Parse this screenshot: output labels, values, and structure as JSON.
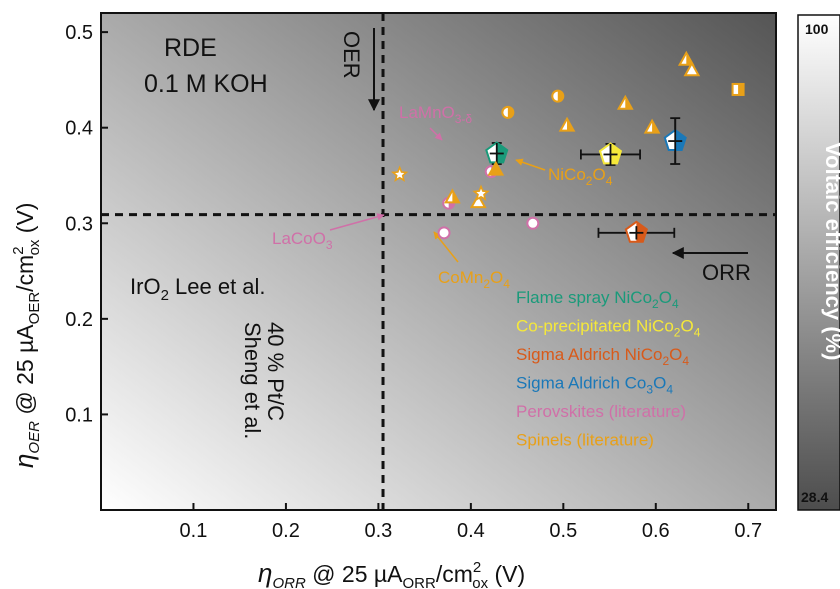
{
  "chart_data": {
    "type": "scatter",
    "xlim": [
      0,
      0.73
    ],
    "ylim": [
      0,
      0.52
    ],
    "x_ticks": [
      {
        "v": 0.1,
        "label": "0.1"
      },
      {
        "v": 0.2,
        "label": "0.2"
      },
      {
        "v": 0.3,
        "label": "0.3"
      },
      {
        "v": 0.4,
        "label": "0.4"
      },
      {
        "v": 0.5,
        "label": "0.5"
      },
      {
        "v": 0.6,
        "label": "0.6"
      },
      {
        "v": 0.7,
        "label": "0.7"
      }
    ],
    "y_ticks": [
      {
        "v": 0.1,
        "label": "0.1"
      },
      {
        "v": 0.2,
        "label": "0.2"
      },
      {
        "v": 0.3,
        "label": "0.3"
      },
      {
        "v": 0.4,
        "label": "0.4"
      },
      {
        "v": 0.5,
        "label": "0.5"
      }
    ],
    "xlabel": {
      "eta": "η",
      "sub1": "ORR",
      "mid": " @ 25 µA",
      "sub2": "ORR",
      "mid2": "/cm",
      "sup": "2",
      "sub3": "ox",
      "end": " (V)"
    },
    "ylabel": {
      "eta": "η",
      "sub1": "OER",
      "mid": " @ 25 µA",
      "sub2": "OER",
      "mid2": "/cm",
      "sup": "2",
      "sub3": "ox",
      "end": " (V)"
    },
    "reference_lines": {
      "horizontal": {
        "y": 0.309,
        "label_main": "IrO",
        "label_sub": "2",
        "label_rest": " Lee et al."
      },
      "vertical": {
        "x": 0.305,
        "label_line1": "40 % Pt/C",
        "label_line2": "Sheng et al."
      }
    },
    "annotations": {
      "conditions_line1": "RDE",
      "conditions_line2": "0.1 M KOH",
      "oer_arrow": "OER",
      "orr_arrow": "ORR",
      "lamno3": {
        "text": "LaMnO",
        "sub": "3-δ"
      },
      "lacoo3": {
        "text": "LaCoO",
        "sub": "3"
      },
      "nico2o4": {
        "parts": [
          "NiCo",
          "2",
          "O",
          "4"
        ]
      },
      "comn2o4": {
        "parts": [
          "CoMn",
          "2",
          "O",
          "4"
        ]
      }
    },
    "legend": [
      {
        "name": "Flame spray NiCo",
        "sub1": "2",
        "mid": "O",
        "sub2": "4",
        "color": "#1a9a7a"
      },
      {
        "name": "Co-precipitated NiCo",
        "sub1": "2",
        "mid": "O",
        "sub2": "4",
        "color": "#f5e83a"
      },
      {
        "name": "Sigma Aldrich NiCo",
        "sub1": "2",
        "mid": "O",
        "sub2": "4",
        "color": "#d85a1a"
      },
      {
        "name": "Sigma Aldrich Co",
        "sub1": "3",
        "mid": "O",
        "sub2": "4",
        "color": "#1a78b8"
      },
      {
        "name": "Perovskites (literature)",
        "sub1": "",
        "mid": "",
        "sub2": "",
        "color": "#d070a8"
      },
      {
        "name": "Spinels (literature)",
        "sub1": "",
        "mid": "",
        "sub2": "",
        "color": "#e8a018"
      }
    ],
    "series": [
      {
        "name": "Flame spray NiCo2O4",
        "color": "#1a9a7a",
        "marker": "pentagon",
        "points": [
          {
            "x": 0.428,
            "y": 0.373,
            "xerr": 0.006,
            "yerr": 0.011
          }
        ]
      },
      {
        "name": "Co-precipitated NiCo2O4",
        "color": "#f5e83a",
        "marker": "pentagon",
        "points": [
          {
            "x": 0.551,
            "y": 0.372,
            "xerr": 0.032,
            "yerr": 0.011
          }
        ]
      },
      {
        "name": "Sigma Aldrich NiCo2O4",
        "color": "#d85a1a",
        "marker": "pentagon",
        "points": [
          {
            "x": 0.579,
            "y": 0.29,
            "xerr": 0.041,
            "yerr": 0.007
          }
        ]
      },
      {
        "name": "Sigma Aldrich Co3O4",
        "color": "#1a78b8",
        "marker": "pentagon",
        "points": [
          {
            "x": 0.621,
            "y": 0.386,
            "xerr": 0.004,
            "yerr": 0.024
          }
        ]
      },
      {
        "name": "Perovskites (literature)",
        "color": "#d070a8",
        "marker": "circle",
        "points": [
          {
            "x": 0.422,
            "y": 0.354,
            "fill": "half"
          },
          {
            "x": 0.376,
            "y": 0.321,
            "fill": "half"
          },
          {
            "x": 0.371,
            "y": 0.29,
            "fill": "open"
          },
          {
            "x": 0.467,
            "y": 0.3,
            "fill": "open"
          }
        ]
      },
      {
        "name": "Spinels (literature)",
        "color": "#e8a018",
        "marker": "mixed",
        "points": [
          {
            "x": 0.44,
            "y": 0.416,
            "m": "circle-half"
          },
          {
            "x": 0.494,
            "y": 0.433,
            "m": "circle-half"
          },
          {
            "x": 0.323,
            "y": 0.351,
            "m": "star"
          },
          {
            "x": 0.38,
            "y": 0.327,
            "m": "triangle-half"
          },
          {
            "x": 0.408,
            "y": 0.322,
            "m": "triangle-open"
          },
          {
            "x": 0.411,
            "y": 0.331,
            "m": "star"
          },
          {
            "x": 0.427,
            "y": 0.356,
            "m": "triangle-filled"
          },
          {
            "x": 0.504,
            "y": 0.402,
            "m": "triangle-half"
          },
          {
            "x": 0.567,
            "y": 0.425,
            "m": "triangle-half"
          },
          {
            "x": 0.596,
            "y": 0.4,
            "m": "triangle-half"
          },
          {
            "x": 0.633,
            "y": 0.471,
            "m": "triangle-half"
          },
          {
            "x": 0.639,
            "y": 0.46,
            "m": "triangle-open"
          },
          {
            "x": 0.689,
            "y": 0.44,
            "m": "square-half"
          }
        ]
      }
    ],
    "colorbar": {
      "label": "Voltaic efficiency (%)",
      "max_label": "100",
      "min_label": "28.4",
      "min": 28.4,
      "max": 100
    }
  }
}
